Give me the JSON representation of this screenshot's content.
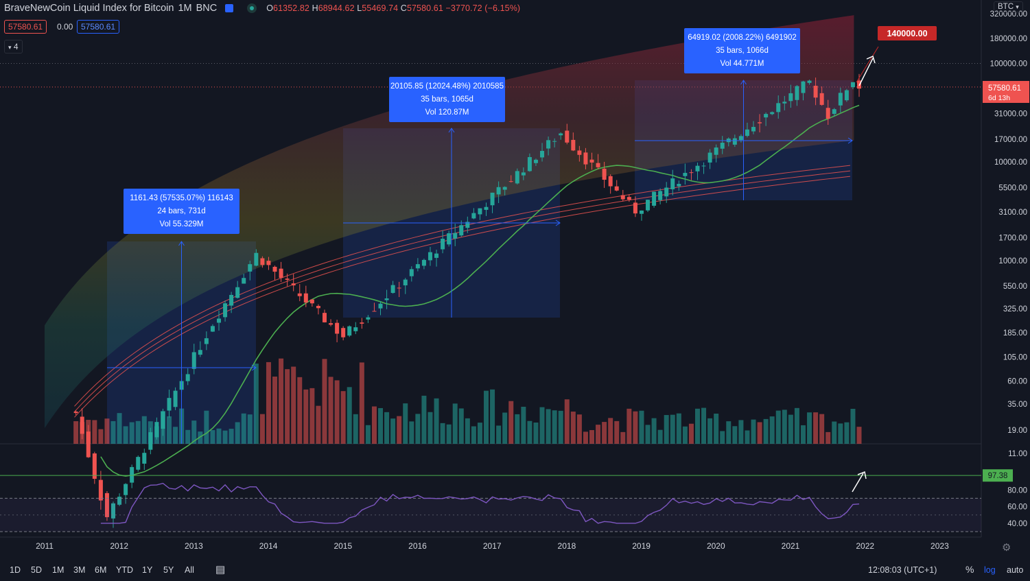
{
  "header": {
    "symbol": "BraveNewCoin Liquid Index for Bitcoin",
    "interval": "1M",
    "exchange": "BNC",
    "open_label": "O",
    "open": "61352.82",
    "high_label": "H",
    "high": "68944.62",
    "low_label": "L",
    "low": "55469.74",
    "close_label": "C",
    "close": "57580.61",
    "change": "−3770.72 (−6.15%)"
  },
  "price_pills": {
    "bid": "57580.61",
    "spread": "0.00",
    "ask": "57580.61"
  },
  "indicators_count": "4",
  "currency_button": "BTC",
  "colors": {
    "bg": "#131722",
    "up": "#26a69a",
    "down": "#ef5350",
    "ma": "#4caf50",
    "rsi": "#7e57c2",
    "measure": "#2962ff",
    "target": "#c62828"
  },
  "target_label": "140000.00",
  "last_price_label": {
    "price": "57580.61",
    "countdown": "6d 13h"
  },
  "rsi_label": "97.38",
  "measurements": [
    {
      "line1": "1161.43 (57535.07%) 116143",
      "line2": "24 bars, 731d",
      "line3": "Vol 55.329M"
    },
    {
      "line1": "20105.85 (12024.48%) 2010585",
      "line2": "35 bars, 1065d",
      "line3": "Vol 120.87M"
    },
    {
      "line1": "64919.02 (2008.22%) 6491902",
      "line2": "35 bars, 1066d",
      "line3": "Vol 44.771M"
    }
  ],
  "bottom_bar": {
    "ranges": [
      "1D",
      "5D",
      "1M",
      "3M",
      "6M",
      "YTD",
      "1Y",
      "5Y",
      "All"
    ],
    "time": "12:08:03 (UTC+1)",
    "percent": "%",
    "log": "log",
    "auto": "auto"
  },
  "chart_data": {
    "type": "candlestick",
    "scale": "log",
    "y_ticks": [
      "320000.00",
      "180000.00",
      "100000.00",
      "57580.61",
      "31000.00",
      "17000.00",
      "10000.00",
      "5500.00",
      "3100.00",
      "1700.00",
      "1000.00",
      "550.00",
      "325.00",
      "185.00",
      "105.00",
      "60.00",
      "35.00",
      "19.00",
      "11.00"
    ],
    "x_ticks": [
      "2011",
      "2012",
      "2013",
      "2014",
      "2015",
      "2016",
      "2017",
      "2018",
      "2019",
      "2020",
      "2021",
      "2022",
      "2023"
    ],
    "key_points": [
      {
        "date": "2011-06",
        "price": 29
      },
      {
        "date": "2011-11",
        "price": 2.5
      },
      {
        "date": "2013-04",
        "price": 230
      },
      {
        "date": "2013-11",
        "price": 1161
      },
      {
        "date": "2015-01",
        "price": 170
      },
      {
        "date": "2017-12",
        "price": 19800
      },
      {
        "date": "2018-12",
        "price": 3200
      },
      {
        "date": "2021-04",
        "price": 64900
      },
      {
        "date": "2021-07",
        "price": 29800
      },
      {
        "date": "2021-11",
        "price": 68944
      },
      {
        "date": "2021-12",
        "price": 57580
      }
    ],
    "rsi": {
      "ticks": [
        "80.00",
        "60.00",
        "40.00"
      ],
      "upper": 70,
      "lower": 30,
      "last": 97.38
    }
  }
}
